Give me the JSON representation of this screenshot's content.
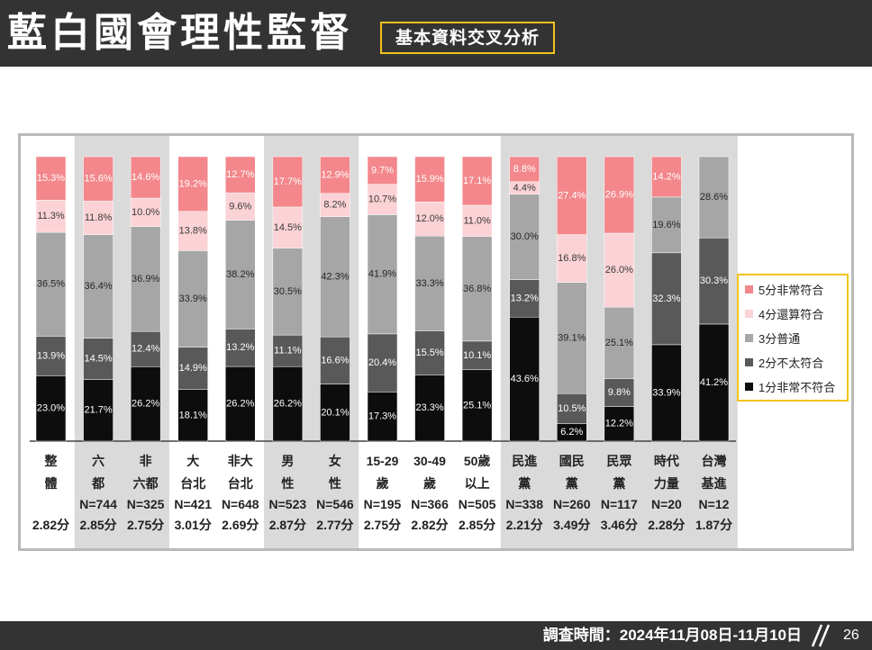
{
  "header": {
    "title": "藍白國會理性監督",
    "badge": "基本資料交叉分析"
  },
  "footer": {
    "survey_time": "調查時間：2024年11月08日-11月10日",
    "page_number": "26"
  },
  "chart_data": {
    "type": "bar",
    "stacked": true,
    "orientation": "vertical",
    "ylim": [
      0,
      100
    ],
    "grid": false,
    "legend_position": "right",
    "value_suffix": "%",
    "categories": [
      {
        "lines": [
          "整",
          "體"
        ],
        "score": "2.82分"
      },
      {
        "lines": [
          "六",
          "都"
        ],
        "n": "N=744",
        "score": "2.85分"
      },
      {
        "lines": [
          "非",
          "六都"
        ],
        "n": "N=325",
        "score": "2.75分"
      },
      {
        "lines": [
          "大",
          "台北"
        ],
        "n": "N=421",
        "score": "3.01分"
      },
      {
        "lines": [
          "非大",
          "台北"
        ],
        "n": "N=648",
        "score": "2.69分"
      },
      {
        "lines": [
          "男",
          "性"
        ],
        "n": "N=523",
        "score": "2.87分"
      },
      {
        "lines": [
          "女",
          "性"
        ],
        "n": "N=546",
        "score": "2.77分"
      },
      {
        "lines": [
          "15-29",
          "歲"
        ],
        "n": "N=195",
        "score": "2.75分"
      },
      {
        "lines": [
          "30-49",
          "歲"
        ],
        "n": "N=366",
        "score": "2.82分"
      },
      {
        "lines": [
          "50歲",
          "以上"
        ],
        "n": "N=505",
        "score": "2.85分"
      },
      {
        "lines": [
          "民進",
          "黨"
        ],
        "n": "N=338",
        "score": "2.21分"
      },
      {
        "lines": [
          "國民",
          "黨"
        ],
        "n": "N=260",
        "score": "3.49分"
      },
      {
        "lines": [
          "民眾",
          "黨"
        ],
        "n": "N=117",
        "score": "3.46分"
      },
      {
        "lines": [
          "時代",
          "力量"
        ],
        "n": "N=20",
        "score": "2.28分"
      },
      {
        "lines": [
          "台灣",
          "基進"
        ],
        "n": "N=12",
        "score": "1.87分"
      }
    ],
    "series": [
      {
        "name": "1分非常不符合",
        "color": "#0d0d0d",
        "label_color": "#ffffff",
        "values": [
          23.0,
          21.7,
          26.2,
          18.1,
          26.2,
          26.2,
          20.1,
          17.3,
          23.3,
          25.1,
          43.6,
          6.2,
          12.2,
          33.9,
          41.2
        ]
      },
      {
        "name": "2分不太符合",
        "color": "#595959",
        "label_color": "#ffffff",
        "values": [
          13.9,
          14.5,
          12.4,
          14.9,
          13.2,
          11.1,
          16.6,
          20.4,
          15.5,
          10.1,
          13.2,
          10.5,
          9.8,
          32.3,
          30.3
        ]
      },
      {
        "name": "3分普通",
        "color": "#a6a6a6",
        "label_color": "#262626",
        "values": [
          36.5,
          36.4,
          36.9,
          33.9,
          38.2,
          30.5,
          42.3,
          41.9,
          33.3,
          36.8,
          30.0,
          39.1,
          25.1,
          19.6,
          28.6
        ]
      },
      {
        "name": "4分還算符合",
        "color": "#fbd2d5",
        "label_color": "#3a3a3a",
        "values": [
          11.3,
          11.8,
          10.0,
          13.8,
          9.6,
          14.5,
          8.2,
          10.7,
          12.0,
          11.0,
          4.4,
          16.8,
          26.0,
          null,
          null
        ]
      },
      {
        "name": "5分非常符合",
        "color": "#f3878b",
        "label_color": "#ffffff",
        "values": [
          15.3,
          15.6,
          14.6,
          19.2,
          12.7,
          17.7,
          12.9,
          9.7,
          15.9,
          17.1,
          8.8,
          27.4,
          26.9,
          14.2,
          null
        ]
      }
    ],
    "column_groups": [
      {
        "columns": 1,
        "shaded": false
      },
      {
        "columns": 2,
        "shaded": true
      },
      {
        "columns": 2,
        "shaded": false
      },
      {
        "columns": 2,
        "shaded": true
      },
      {
        "columns": 3,
        "shaded": false
      },
      {
        "columns": 5,
        "shaded": true
      }
    ]
  }
}
